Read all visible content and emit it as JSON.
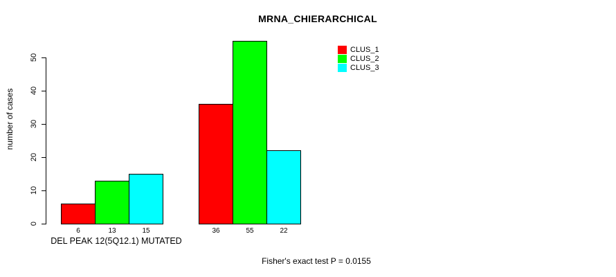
{
  "chart_data": {
    "type": "bar",
    "title": "MRNA_CHIERARCHICAL",
    "ylabel": "number of cases",
    "xlabel": "DEL PEAK 12(5Q12.1) MUTATED",
    "yticks": [
      0,
      10,
      20,
      30,
      40,
      50
    ],
    "ylim": [
      0,
      55
    ],
    "grid": false,
    "legend_position": "top-right",
    "series": [
      {
        "name": "CLUS_1",
        "color": "#ff0000"
      },
      {
        "name": "CLUS_2",
        "color": "#00ff00"
      },
      {
        "name": "CLUS_3",
        "color": "#00ffff"
      }
    ],
    "groups": [
      {
        "values": [
          6,
          13,
          15
        ]
      },
      {
        "values": [
          36,
          55,
          22
        ]
      }
    ],
    "annotation": "Fisher's exact test P = 0.0155"
  }
}
